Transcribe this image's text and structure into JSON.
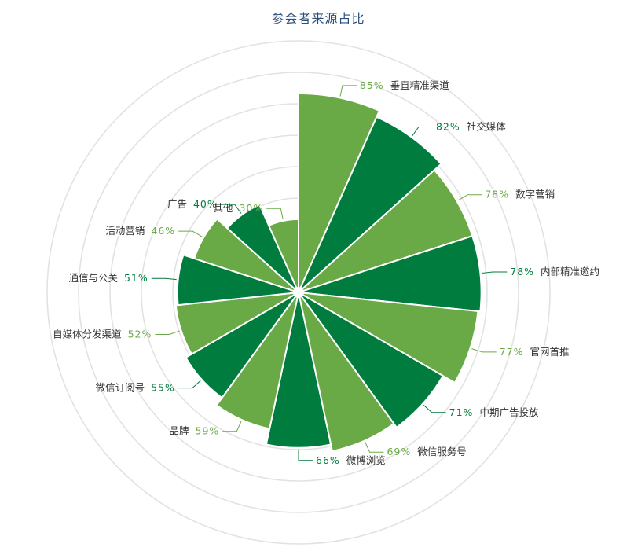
{
  "chart_data": {
    "type": "pie",
    "variant": "nightingale-rose",
    "title": "参会者来源占比",
    "grid": true,
    "colors": [
      "#6aaa46",
      "#007c3e"
    ],
    "categories": [
      "垂直精准渠道",
      "社交媒体",
      "数字营销",
      "内部精准邀约",
      "官网首推",
      "中期广告投放",
      "微信服务号",
      "微博浏览",
      "品牌",
      "微信订阅号",
      "自媒体分发渠道",
      "通信与公关",
      "活动营销",
      "广告",
      "其他"
    ],
    "values": [
      85,
      82,
      78,
      78,
      77,
      71,
      69,
      66,
      59,
      55,
      52,
      51,
      46,
      40,
      30
    ],
    "value_labels": [
      "85%",
      "82%",
      "78%",
      "78%",
      "77%",
      "71%",
      "69%",
      "66%",
      "59%",
      "55%",
      "52%",
      "51%",
      "46%",
      "40%",
      "30%"
    ]
  }
}
